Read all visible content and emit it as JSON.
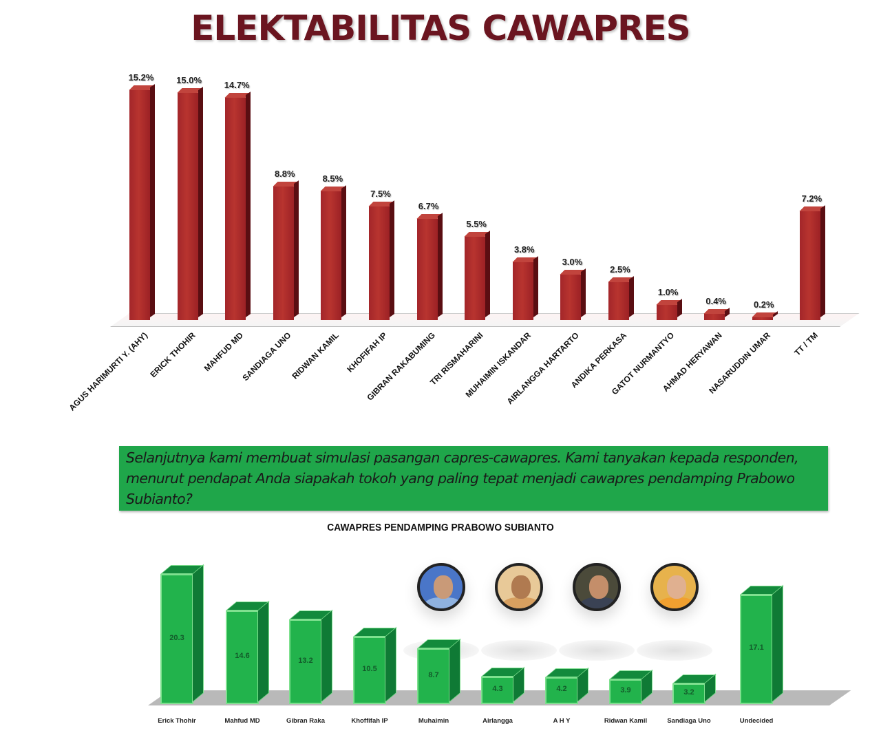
{
  "title": "ELEKTABILITAS CAWAPRES",
  "note": "Selanjutnya kami membuat simulasi pasangan capres-cawapres. Kami tanyakan kepada responden, menurut pendapat Anda siapakah tokoh yang paling tepat menjadi cawapres pendamping Prabowo Subianto?",
  "subtitle": "CAWAPRES PENDAMPING PRABOWO SUBIANTO",
  "colors": {
    "title": "#6b1520",
    "bar_red": "#a3262a",
    "bar_green": "#22b34c",
    "note_bg": "#1fa64a"
  },
  "avatars": [
    {
      "name": "erick-thohir-photo",
      "bg": "#4a76c8",
      "face": "#c99a78",
      "body": "#8fb2e0"
    },
    {
      "name": "mahfud-md-photo",
      "bg": "#e8c998",
      "face": "#b07a50",
      "body": "#d8a060"
    },
    {
      "name": "gibran-photo",
      "bg": "#4b4a3a",
      "face": "#c48e6a",
      "body": "#3a4254"
    },
    {
      "name": "khofifah-photo",
      "bg": "#e7b24c",
      "face": "#e0b090",
      "body": "#f0a030"
    }
  ],
  "chart_data": [
    {
      "type": "bar",
      "title": "ELEKTABILITAS CAWAPRES",
      "xlabel": "",
      "ylabel": "",
      "ylim": [
        0,
        16
      ],
      "grid": false,
      "legend": null,
      "categories": [
        "AGUS HARIMURTI Y. (AHY)",
        "ERICK THOHIR",
        "MAHFUD MD",
        "SANDIAGA UNO",
        "RIDWAN KAMIL",
        "KHOFIFAH IP",
        "GIBRAN RAKABUMING",
        "TRI RISMAHARINI",
        "MUHAIMIN ISKANDAR",
        "AIRLANGGA HARTARTO",
        "ANDIKA PERKASA",
        "GATOT NURMANTYO",
        "AHMAD HERYAWAN",
        "NASARUDDIN UMAR",
        "TT / TM"
      ],
      "values": [
        15.2,
        15.0,
        14.7,
        8.8,
        8.5,
        7.5,
        6.7,
        5.5,
        3.8,
        3.0,
        2.5,
        1.0,
        0.4,
        0.2,
        7.2
      ],
      "labels": [
        "15.2%",
        "15.0%",
        "14.7%",
        "8.8%",
        "8.5%",
        "7.5%",
        "6.7%",
        "5.5%",
        "3.8%",
        "3.0%",
        "2.5%",
        "1.0%",
        "0.4%",
        "0.2%",
        "7.2%"
      ],
      "unit": "%"
    },
    {
      "type": "bar",
      "title": "CAWAPRES PENDAMPING PRABOWO SUBIANTO",
      "xlabel": "",
      "ylabel": "",
      "ylim": [
        0,
        22
      ],
      "grid": false,
      "legend": null,
      "categories": [
        "Erick Thohir",
        "Mahfud MD",
        "Gibran Raka",
        "Khoffifah IP",
        "Muhaimin",
        "Airlangga",
        "A H Y",
        "Ridwan Kamil",
        "Sandiaga Uno",
        "Undecided"
      ],
      "values": [
        20.3,
        14.6,
        13.2,
        10.5,
        8.7,
        4.3,
        4.2,
        3.9,
        3.2,
        17.1
      ],
      "labels": [
        "20.3",
        "14.6",
        "13.2",
        "10.5",
        "8.7",
        "4.3",
        "4.2",
        "3.9",
        "3.2",
        "17.1"
      ]
    }
  ]
}
